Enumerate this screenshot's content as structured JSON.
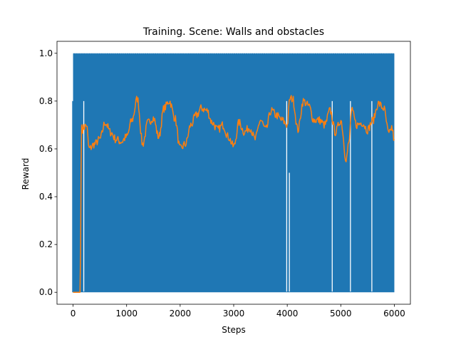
{
  "chart_data": {
    "type": "line",
    "title": "Training. Scene: Walls and obstacles",
    "xlabel": "Steps",
    "ylabel": "Reward",
    "xlim": [
      -300,
      6300
    ],
    "ylim": [
      -0.05,
      1.05
    ],
    "xticks": [
      0,
      1000,
      2000,
      3000,
      4000,
      5000,
      6000
    ],
    "yticks": [
      0.0,
      0.2,
      0.4,
      0.6,
      0.8,
      1.0
    ],
    "xtick_labels": [
      "0",
      "1000",
      "2000",
      "3000",
      "4000",
      "5000",
      "6000"
    ],
    "ytick_labels": [
      "0.0",
      "0.2",
      "0.4",
      "0.6",
      "0.8",
      "1.0"
    ],
    "grid": false,
    "colors": {
      "series_raw": "#1f77b4",
      "series_smoothed": "#ff7f0e",
      "axes": "#000000",
      "background": "#ffffff"
    },
    "series": [
      {
        "kind": "raw",
        "note_visual": "dense 0/1 reward signal filling the 0-1 band",
        "x_range": [
          0,
          6000
        ],
        "low": 0.0,
        "high": 1.0,
        "start_value": 0.8,
        "end_value": 0.9,
        "gaps": [
          {
            "x": 200,
            "top": 0.8
          },
          {
            "x": 3990,
            "top": 0.8
          },
          {
            "x": 4040,
            "top": 0.5
          },
          {
            "x": 4840,
            "top": 0.8
          },
          {
            "x": 5180,
            "top": 0.8
          },
          {
            "x": 5580,
            "top": 0.8
          }
        ]
      },
      {
        "kind": "smoothed",
        "x": [
          0,
          130,
          160,
          170,
          200,
          250,
          300,
          400,
          500,
          600,
          700,
          800,
          900,
          1000,
          1100,
          1200,
          1300,
          1400,
          1500,
          1600,
          1700,
          1800,
          1900,
          2000,
          2100,
          2200,
          2300,
          2400,
          2500,
          2600,
          2700,
          2800,
          2900,
          3000,
          3100,
          3200,
          3300,
          3400,
          3500,
          3600,
          3700,
          3800,
          3900,
          4000,
          4050,
          4100,
          4200,
          4300,
          4400,
          4500,
          4600,
          4700,
          4800,
          4900,
          5000,
          5100,
          5150,
          5200,
          5300,
          5400,
          5500,
          5600,
          5700,
          5800,
          5900,
          5950,
          6000
        ],
        "y": [
          0.0,
          0.0,
          0.7,
          0.68,
          0.69,
          0.7,
          0.6,
          0.62,
          0.64,
          0.71,
          0.67,
          0.64,
          0.63,
          0.65,
          0.72,
          0.81,
          0.62,
          0.71,
          0.73,
          0.65,
          0.77,
          0.8,
          0.73,
          0.6,
          0.62,
          0.7,
          0.74,
          0.77,
          0.76,
          0.71,
          0.68,
          0.7,
          0.65,
          0.61,
          0.71,
          0.67,
          0.69,
          0.64,
          0.72,
          0.68,
          0.76,
          0.74,
          0.72,
          0.7,
          0.81,
          0.81,
          0.68,
          0.8,
          0.78,
          0.72,
          0.72,
          0.7,
          0.76,
          0.67,
          0.72,
          0.56,
          0.62,
          0.76,
          0.7,
          0.71,
          0.68,
          0.72,
          0.79,
          0.77,
          0.66,
          0.69,
          0.64
        ]
      }
    ]
  }
}
